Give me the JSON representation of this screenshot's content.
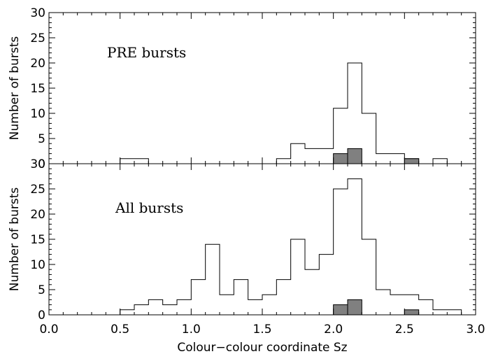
{
  "chart_data": [
    {
      "type": "histogram",
      "panel_label": "PRE bursts",
      "ylabel": "Number of bursts",
      "ylim": [
        0,
        30
      ],
      "yticks": [
        "0",
        "5",
        "10",
        "15",
        "20",
        "25",
        "30"
      ],
      "bins": [
        0.5,
        0.6,
        0.7,
        0.8,
        0.9,
        1.0,
        1.1,
        1.2,
        1.3,
        1.4,
        1.5,
        1.6,
        1.7,
        1.8,
        1.9,
        2.0,
        2.1,
        2.2,
        2.3,
        2.4,
        2.5,
        2.6,
        2.7,
        2.8,
        2.9,
        3.0
      ],
      "series": [
        {
          "values": [
            1,
            1,
            0,
            0,
            0,
            0,
            0,
            0,
            0,
            0,
            0,
            1,
            4,
            3,
            3,
            11,
            20,
            10,
            2,
            2,
            1,
            0,
            1,
            0,
            0
          ]
        },
        {
          "values": [
            0,
            0,
            0,
            0,
            0,
            0,
            0,
            0,
            0,
            0,
            0,
            0,
            0,
            0,
            0,
            2,
            3,
            0,
            0,
            0,
            1,
            0,
            0,
            0,
            0
          ],
          "filled": true,
          "color": "#808080"
        }
      ]
    },
    {
      "type": "histogram",
      "panel_label": "All bursts",
      "ylabel": "Number of bursts",
      "ylim": [
        0,
        30
      ],
      "yticks": [
        "0",
        "5",
        "10",
        "15",
        "20",
        "25",
        "30"
      ],
      "bins": [
        0.5,
        0.6,
        0.7,
        0.8,
        0.9,
        1.0,
        1.1,
        1.2,
        1.3,
        1.4,
        1.5,
        1.6,
        1.7,
        1.8,
        1.9,
        2.0,
        2.1,
        2.2,
        2.3,
        2.4,
        2.5,
        2.6,
        2.7,
        2.8,
        2.9,
        3.0
      ],
      "series": [
        {
          "values": [
            1,
            2,
            3,
            2,
            3,
            7,
            14,
            4,
            7,
            3,
            4,
            7,
            15,
            9,
            12,
            25,
            27,
            15,
            5,
            4,
            4,
            3,
            1,
            1,
            0
          ]
        },
        {
          "values": [
            0,
            0,
            0,
            0,
            0,
            0,
            0,
            0,
            0,
            0,
            0,
            0,
            0,
            0,
            0,
            2,
            3,
            0,
            0,
            0,
            1,
            0,
            0,
            0,
            0
          ],
          "filled": true,
          "color": "#808080"
        }
      ]
    }
  ],
  "x_axis": {
    "xlabel": "Colour−colour coordinate Sz",
    "xlim": [
      0.0,
      3.0
    ],
    "xticks": [
      "0.0",
      "0.5",
      "1.0",
      "1.5",
      "2.0",
      "2.5",
      "3.0"
    ]
  }
}
